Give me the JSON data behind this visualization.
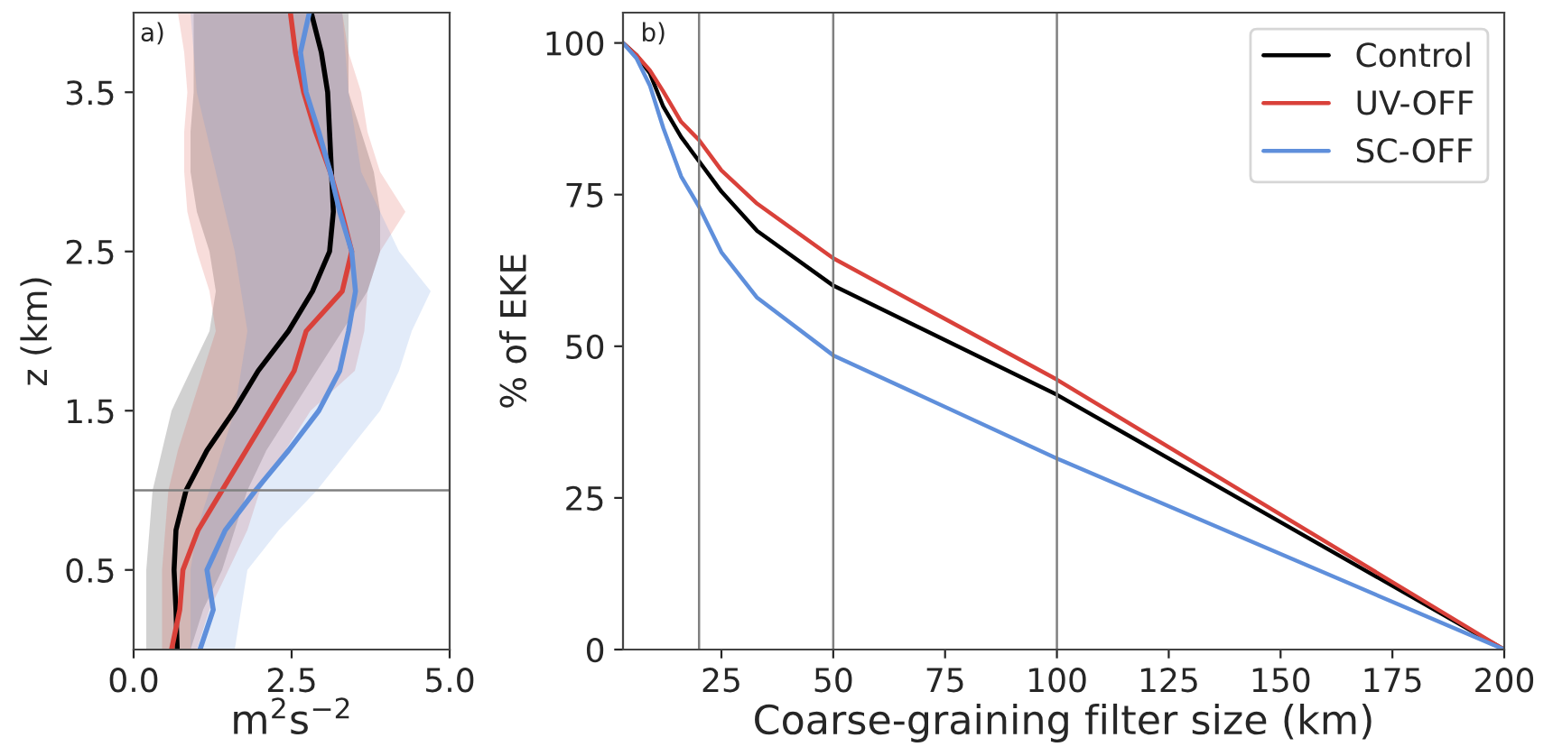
{
  "chart_data": [
    {
      "type": "line",
      "orientation": "horizontal",
      "xlabel": "m$^{2}$s$^{−2}$",
      "ylabel": "z (km)",
      "annotations": [
        "a)"
      ],
      "x": [
        0,
        0.25,
        0.5,
        0.75,
        1.0,
        1.25,
        1.5,
        1.75,
        2.0,
        2.25,
        2.5,
        2.75,
        3.0,
        3.25,
        3.5,
        3.75,
        4.0
      ],
      "series": [
        {
          "color": "#000000",
          "values": [
            0.69,
            0.67,
            0.64,
            0.67,
            0.83,
            1.16,
            1.59,
            1.97,
            2.45,
            2.83,
            3.1,
            3.16,
            3.13,
            3.1,
            3.07,
            2.97,
            2.81
          ],
          "lower": [
            0.2,
            0.2,
            0.2,
            0.25,
            0.3,
            0.45,
            0.6,
            0.9,
            1.2,
            1.3,
            1.2,
            1.0,
            0.9,
            0.9,
            0.95,
            0.95,
            0.95
          ],
          "upper": [
            0.9,
            1.1,
            1.4,
            1.6,
            1.8,
            2.1,
            2.5,
            2.9,
            3.3,
            3.7,
            3.9,
            3.9,
            3.8,
            3.6,
            3.4,
            3.4,
            3.4
          ]
        },
        {
          "color": "#d9413a",
          "values": [
            0.6,
            0.73,
            0.78,
            1.02,
            1.4,
            1.78,
            2.16,
            2.54,
            2.73,
            3.3,
            3.45,
            3.29,
            3.11,
            2.88,
            2.69,
            2.56,
            2.48
          ],
          "lower": [
            0.45,
            0.45,
            0.45,
            0.5,
            0.55,
            0.7,
            0.9,
            1.1,
            1.3,
            1.2,
            1.0,
            0.85,
            0.8,
            0.8,
            0.85,
            0.8,
            0.7
          ],
          "upper": [
            1.0,
            1.2,
            1.5,
            1.8,
            2.0,
            2.4,
            2.8,
            3.5,
            3.65,
            3.7,
            3.9,
            4.3,
            3.9,
            3.7,
            3.6,
            3.4,
            3.3
          ]
        },
        {
          "color": "#5f8fdb",
          "values": [
            1.05,
            1.26,
            1.16,
            1.45,
            1.93,
            2.45,
            2.93,
            3.26,
            3.4,
            3.51,
            3.45,
            3.26,
            3.11,
            2.93,
            2.73,
            2.64,
            2.78
          ],
          "lower": [
            0.9,
            0.9,
            0.9,
            1.0,
            1.2,
            1.4,
            1.6,
            1.7,
            1.8,
            1.7,
            1.6,
            1.45,
            1.3,
            1.15,
            1.0,
            0.95,
            0.9
          ],
          "upper": [
            1.6,
            1.7,
            1.8,
            2.3,
            2.9,
            3.4,
            3.9,
            4.2,
            4.4,
            4.7,
            4.2,
            3.9,
            3.6,
            3.5,
            3.4,
            3.35,
            3.3
          ]
        }
      ],
      "xlim": [
        0,
        5
      ],
      "xticks": [
        {
          "value": 0,
          "label": "0.0"
        },
        {
          "value": 2.5,
          "label": "2.5"
        },
        {
          "value": 5,
          "label": "5.0"
        }
      ],
      "ylim": [
        0,
        4
      ],
      "yticks": [
        0.5,
        1.5,
        2.5,
        3.5
      ],
      "ref_lines": [
        {
          "axis": "y",
          "value": 1.0,
          "color": "#808080"
        }
      ]
    },
    {
      "type": "line",
      "xlabel": "Coarse-graining filter size (km)",
      "ylabel": "% of EKE",
      "annotations": [
        "b)"
      ],
      "legend": "top right",
      "x": [
        3,
        6,
        9,
        12,
        16,
        20,
        25,
        33,
        50,
        100,
        200
      ],
      "series": [
        {
          "name": "Control",
          "color": "#000000",
          "values": [
            100,
            98,
            95,
            89.5,
            84.5,
            80.5,
            75.5,
            69,
            60,
            42,
            0
          ]
        },
        {
          "name": "UV-OFF",
          "color": "#d9413a",
          "values": [
            100,
            98,
            95.5,
            92,
            87,
            84,
            79,
            73.5,
            64.5,
            44.5,
            0
          ]
        },
        {
          "name": "SC-OFF",
          "color": "#5f8fdb",
          "values": [
            100,
            97.5,
            93,
            86,
            78,
            73,
            65.5,
            58,
            48.5,
            31.5,
            0
          ]
        }
      ],
      "xlim": [
        3,
        200
      ],
      "xticks": [
        25,
        50,
        75,
        100,
        125,
        150,
        175,
        200
      ],
      "ylim": [
        0,
        105
      ],
      "yticks": [
        0,
        25,
        50,
        75,
        100
      ],
      "ref_lines": [
        {
          "axis": "x",
          "value": 20,
          "color": "#808080"
        },
        {
          "axis": "x",
          "value": 50,
          "color": "#808080"
        },
        {
          "axis": "x",
          "value": 100,
          "color": "#808080"
        }
      ]
    }
  ]
}
